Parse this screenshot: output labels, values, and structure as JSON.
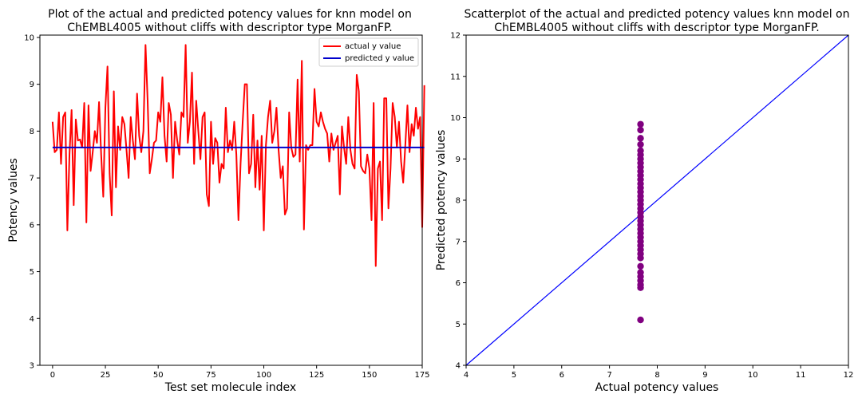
{
  "chart_data": [
    {
      "type": "line",
      "title_line1": "Plot of the actual and predicted potency values for knn model on",
      "title_line2": "ChEMBL4005 without cliffs with descriptor type MorganFP.",
      "xlabel": "Test set molecule index",
      "ylabel": "Potency values",
      "xlim": [
        -6,
        175
      ],
      "ylim": [
        3,
        10.05
      ],
      "xticks": [
        0,
        25,
        50,
        75,
        100,
        125,
        150,
        175
      ],
      "yticks": [
        3,
        4,
        5,
        6,
        7,
        8,
        9,
        10
      ],
      "grid": false,
      "legend_position": "top-right",
      "series": [
        {
          "name": "actual y value",
          "color": "#ff0000",
          "values": [
            8.2,
            7.55,
            7.6,
            8.4,
            7.3,
            8.3,
            8.4,
            5.88,
            7.5,
            8.45,
            6.42,
            8.25,
            7.8,
            7.82,
            7.65,
            8.6,
            6.05,
            8.55,
            7.15,
            7.55,
            8.0,
            7.75,
            8.62,
            7.5,
            6.6,
            8.5,
            9.38,
            7.1,
            6.2,
            8.85,
            6.8,
            8.1,
            7.6,
            8.3,
            8.15,
            7.6,
            7.0,
            8.3,
            7.8,
            7.4,
            8.8,
            7.9,
            7.55,
            8.0,
            9.84,
            8.65,
            7.1,
            7.4,
            7.75,
            7.8,
            8.4,
            8.2,
            9.15,
            7.9,
            7.35,
            8.6,
            8.35,
            7.0,
            8.2,
            7.8,
            7.5,
            8.4,
            8.3,
            9.84,
            7.75,
            8.2,
            9.25,
            7.3,
            8.65,
            8.0,
            7.4,
            8.3,
            8.4,
            6.65,
            6.4,
            8.2,
            7.3,
            7.85,
            7.75,
            6.9,
            7.3,
            7.2,
            8.5,
            7.55,
            7.8,
            7.6,
            8.2,
            7.5,
            6.1,
            7.3,
            8.2,
            9.0,
            9.0,
            7.1,
            7.3,
            8.35,
            6.8,
            7.8,
            6.75,
            7.9,
            5.88,
            7.7,
            8.3,
            8.65,
            7.75,
            8.0,
            8.5,
            7.6,
            7.0,
            7.25,
            6.22,
            6.35,
            8.4,
            7.65,
            7.45,
            7.5,
            9.1,
            7.35,
            9.5,
            5.9,
            7.7,
            7.6,
            7.7,
            7.7,
            8.9,
            8.2,
            8.1,
            8.4,
            8.2,
            8.05,
            7.95,
            7.35,
            7.95,
            7.6,
            7.75,
            7.9,
            6.65,
            8.1,
            7.65,
            7.3,
            8.3,
            7.6,
            7.3,
            7.2,
            9.2,
            8.85,
            7.25,
            7.15,
            7.1,
            7.5,
            7.2,
            6.1,
            8.6,
            5.12,
            7.2,
            7.35,
            6.1,
            8.7,
            8.7,
            6.35,
            7.2,
            8.6,
            8.3,
            7.65,
            8.2,
            7.35,
            6.9,
            7.7,
            8.55,
            7.55,
            8.15,
            7.9,
            8.5,
            8.05,
            8.3,
            5.95,
            8.98
          ]
        },
        {
          "name": "predicted y value",
          "color": "#0000cc",
          "values": [
            7.65,
            7.65
          ]
        }
      ]
    },
    {
      "type": "scatter",
      "title_line1": "Scatterplot of the actual and predicted potency values knn model on",
      "title_line2": "ChEMBL4005 without cliffs with descriptor type MorganFP.",
      "xlabel": "Actual potency values",
      "ylabel": "Predicted potency values",
      "xlim": [
        4,
        12
      ],
      "ylim": [
        4,
        12
      ],
      "xticks": [
        4,
        5,
        6,
        7,
        8,
        9,
        10,
        11,
        12
      ],
      "yticks": [
        4,
        5,
        6,
        7,
        8,
        9,
        10,
        11,
        12
      ],
      "grid": false,
      "point_color": "#800080",
      "line_color": "#0000ff",
      "identity_line": [
        [
          4,
          4
        ],
        [
          12,
          12
        ]
      ],
      "points": [
        [
          7.65,
          5.1
        ],
        [
          7.65,
          5.88
        ],
        [
          7.65,
          5.95
        ],
        [
          7.65,
          6.05
        ],
        [
          7.65,
          6.15
        ],
        [
          7.65,
          6.25
        ],
        [
          7.65,
          6.4
        ],
        [
          7.65,
          6.6
        ],
        [
          7.65,
          6.7
        ],
        [
          7.65,
          6.8
        ],
        [
          7.65,
          6.9
        ],
        [
          7.65,
          7.0
        ],
        [
          7.65,
          7.1
        ],
        [
          7.65,
          7.2
        ],
        [
          7.65,
          7.3
        ],
        [
          7.65,
          7.4
        ],
        [
          7.65,
          7.5
        ],
        [
          7.65,
          7.6
        ],
        [
          7.65,
          7.7
        ],
        [
          7.65,
          7.8
        ],
        [
          7.65,
          7.9
        ],
        [
          7.65,
          8.0
        ],
        [
          7.65,
          8.1
        ],
        [
          7.65,
          8.2
        ],
        [
          7.65,
          8.3
        ],
        [
          7.65,
          8.4
        ],
        [
          7.65,
          8.5
        ],
        [
          7.65,
          8.6
        ],
        [
          7.65,
          8.7
        ],
        [
          7.65,
          8.8
        ],
        [
          7.65,
          8.9
        ],
        [
          7.65,
          9.0
        ],
        [
          7.65,
          9.1
        ],
        [
          7.65,
          9.2
        ],
        [
          7.65,
          9.35
        ],
        [
          7.65,
          9.5
        ],
        [
          7.65,
          9.7
        ],
        [
          7.65,
          9.84
        ]
      ]
    }
  ]
}
